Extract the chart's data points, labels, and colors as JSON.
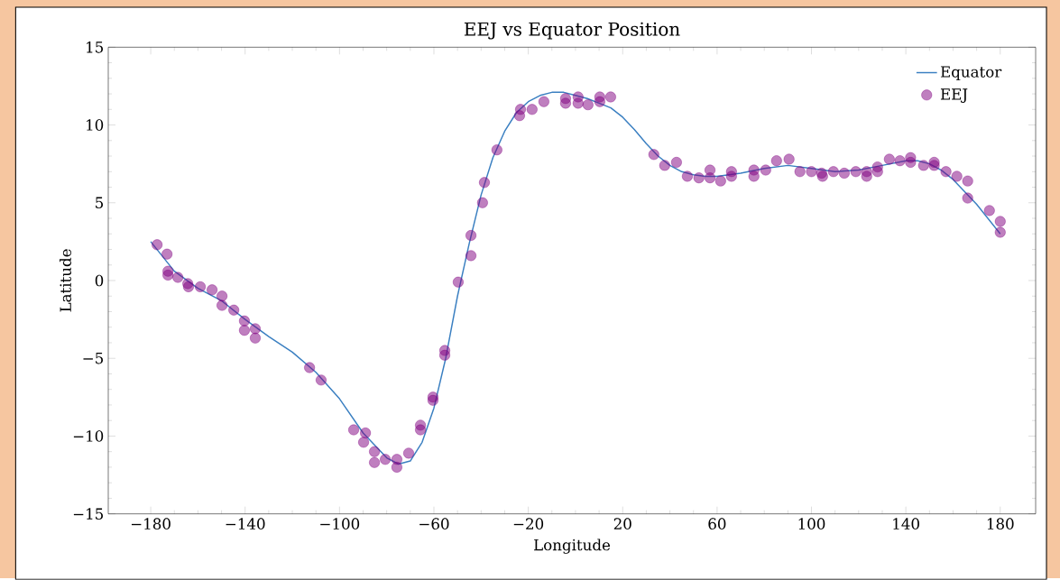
{
  "chart_data": {
    "type": "line",
    "title": "EEJ vs Equator Position",
    "xlabel": "Longitude",
    "ylabel": "Latitude",
    "xlim": [
      -198,
      195
    ],
    "ylim": [
      -15,
      15
    ],
    "xticks": [
      {
        "value": -180,
        "label": "−180"
      },
      {
        "value": -140,
        "label": "−140"
      },
      {
        "value": -100,
        "label": "−100"
      },
      {
        "value": -60,
        "label": "−60"
      },
      {
        "value": -20,
        "label": "−20"
      },
      20,
      60,
      100,
      140,
      180
    ],
    "yticks": [
      {
        "value": -15,
        "label": "−15"
      },
      {
        "value": -10,
        "label": "−10"
      },
      {
        "value": -5,
        "label": "−5"
      },
      0,
      5,
      10,
      15
    ],
    "legend": "top right",
    "series": [
      {
        "name": "Equator",
        "color": "#3a7fc1",
        "line_style": "solid",
        "marker": "none",
        "x": [
          -180,
          -170,
          -160,
          -150,
          -140,
          -130,
          -120,
          -110,
          -100,
          -90,
          -80,
          -75,
          -70,
          -65,
          -60,
          -55,
          -50,
          -45,
          -40,
          -35,
          -30,
          -25,
          -20,
          -15,
          -10,
          -5,
          0,
          5,
          10,
          15,
          20,
          25,
          30,
          35,
          40,
          45,
          50,
          55,
          60,
          65,
          70,
          80,
          90,
          100,
          110,
          120,
          130,
          140,
          145,
          150,
          155,
          160,
          170,
          180
        ],
        "values": [
          2.5,
          0.6,
          -0.5,
          -1.3,
          -2.5,
          -3.6,
          -4.6,
          -5.9,
          -7.6,
          -9.8,
          -11.4,
          -11.8,
          -11.6,
          -10.4,
          -8.2,
          -5.0,
          -1.0,
          2.4,
          5.5,
          7.9,
          9.6,
          10.8,
          11.5,
          11.9,
          12.1,
          12.1,
          11.9,
          11.7,
          11.4,
          11.1,
          10.5,
          9.7,
          8.8,
          8.0,
          7.4,
          7.0,
          6.8,
          6.7,
          6.7,
          6.8,
          6.9,
          7.2,
          7.4,
          7.2,
          7.0,
          7.1,
          7.4,
          7.7,
          7.7,
          7.5,
          7.1,
          6.5,
          4.9,
          3.0
        ]
      },
      {
        "name": "EEJ",
        "type": "scatter",
        "color": "#800080",
        "x": [
          -177.3,
          -173.1,
          -172.7,
          -172.7,
          -168.5,
          -164.3,
          -164,
          -159,
          -154,
          -149.8,
          -149.8,
          -144.8,
          -140.3,
          -140.3,
          -135.7,
          -135.7,
          -112.7,
          -107.8,
          -94,
          -89,
          -89.8,
          -85.2,
          -85.2,
          -80.6,
          -75.7,
          -75.7,
          -70.7,
          -65.7,
          -65.7,
          -60.4,
          -60.4,
          -55.4,
          -55.4,
          -49.7,
          -44.3,
          -44.3,
          -39.4,
          -38.6,
          -33.3,
          -23.7,
          -23.3,
          -18.4,
          -13.4,
          -4.2,
          -4.2,
          1.1,
          1.1,
          5.3,
          10.3,
          10.3,
          14.9,
          33.2,
          37.8,
          42.8,
          47.4,
          52.3,
          57,
          57,
          61.5,
          66.1,
          66.1,
          75.6,
          75.6,
          80.6,
          85.2,
          90.5,
          95.1,
          100,
          104.3,
          104.7,
          109.3,
          113.9,
          118.8,
          123.4,
          123.4,
          128,
          128,
          133,
          137.5,
          142,
          142,
          147.5,
          152,
          152,
          157,
          161.6,
          166.2,
          166.2,
          175.4,
          180,
          180
        ],
        "values": [
          2.3,
          1.7,
          0.6,
          0.35,
          0.2,
          -0.2,
          -0.4,
          -0.4,
          -0.6,
          -1.0,
          -1.6,
          -1.9,
          -2.6,
          -3.2,
          -3.1,
          -3.7,
          -5.6,
          -6.4,
          -9.6,
          -9.8,
          -10.4,
          -11.0,
          -11.7,
          -11.5,
          -11.5,
          -12.0,
          -11.1,
          -9.6,
          -9.3,
          -7.7,
          -7.5,
          -4.5,
          -4.8,
          -0.1,
          1.6,
          2.9,
          5.0,
          6.3,
          8.4,
          10.6,
          11.0,
          11.0,
          11.5,
          11.7,
          11.4,
          11.8,
          11.4,
          11.3,
          11.8,
          11.5,
          11.8,
          8.1,
          7.4,
          7.6,
          6.7,
          6.6,
          7.1,
          6.6,
          6.4,
          6.7,
          7.0,
          7.1,
          6.7,
          7.1,
          7.7,
          7.8,
          7.0,
          7.0,
          6.9,
          6.7,
          7.0,
          6.9,
          7.0,
          7.0,
          6.7,
          7.0,
          7.3,
          7.8,
          7.7,
          7.9,
          7.6,
          7.4,
          7.6,
          7.4,
          7.0,
          6.7,
          6.4,
          5.3,
          4.5,
          3.8,
          3.1
        ]
      }
    ]
  }
}
